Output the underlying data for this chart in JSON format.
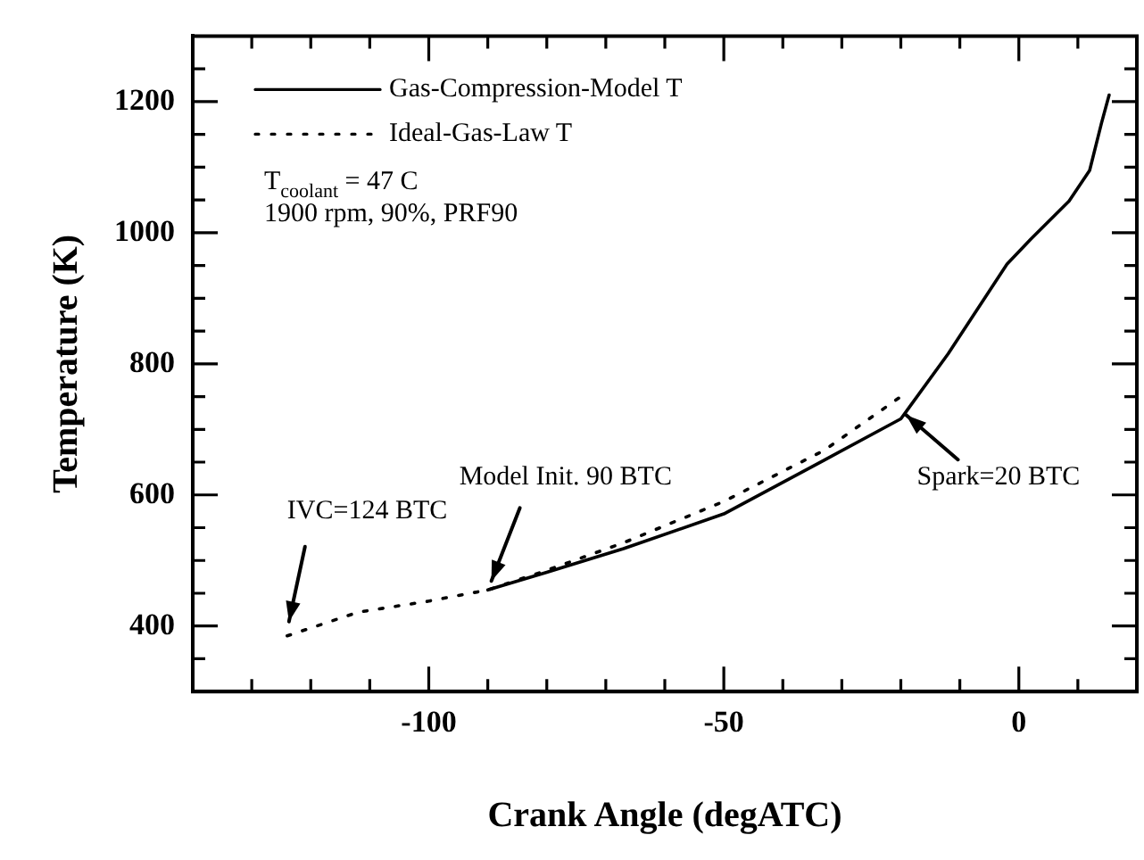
{
  "chart_data": {
    "type": "line",
    "xlabel": "Crank Angle (degATC)",
    "ylabel": "Temperature (K)",
    "xlim": [
      -140,
      20
    ],
    "ylim": [
      300,
      1300
    ],
    "xticks": [
      {
        "value": -130,
        "label": null
      },
      {
        "value": -120,
        "label": null
      },
      {
        "value": -110,
        "label": null
      },
      -100,
      {
        "value": -90,
        "label": null
      },
      {
        "value": -80,
        "label": null
      },
      {
        "value": -70,
        "label": null
      },
      {
        "value": -60,
        "label": null
      },
      -50,
      {
        "value": -40,
        "label": null
      },
      {
        "value": -30,
        "label": null
      },
      {
        "value": -20,
        "label": null
      },
      {
        "value": -10,
        "label": null
      },
      0,
      {
        "value": 10,
        "label": null
      }
    ],
    "yticks": [
      {
        "value": 350,
        "label": null
      },
      400,
      {
        "value": 450,
        "label": null
      },
      {
        "value": 500,
        "label": null
      },
      {
        "value": 550,
        "label": null
      },
      600,
      {
        "value": 650,
        "label": null
      },
      {
        "value": 700,
        "label": null
      },
      {
        "value": 750,
        "label": null
      },
      800,
      {
        "value": 850,
        "label": null
      },
      {
        "value": 900,
        "label": null
      },
      {
        "value": 950,
        "label": null
      },
      1000,
      {
        "value": 1050,
        "label": null
      },
      {
        "value": 1100,
        "label": null
      },
      {
        "value": 1150,
        "label": null
      },
      1200,
      {
        "value": 1250,
        "label": null
      }
    ],
    "grid": false,
    "legend": "top left",
    "marker": "none",
    "series": [
      {
        "name": "Gas-Compression-Model T",
        "color": "#000000",
        "line_style": "solid",
        "x": [
          -90,
          -80,
          -67,
          -50,
          -33,
          -20,
          -12,
          -2,
          2,
          8.5,
          12,
          14,
          15.3
        ],
        "values": [
          455,
          482,
          518,
          571,
          653,
          716,
          815,
          952,
          990,
          1048,
          1095,
          1167,
          1210
        ]
      },
      {
        "name": "Ideal-Gas-Law T",
        "color": "#000000",
        "line_style": "dotted",
        "x": [
          -124,
          -112,
          -100,
          -90,
          -80,
          -67,
          -50,
          -33,
          -20
        ],
        "values": [
          385,
          421,
          438,
          455,
          485,
          527,
          590,
          668,
          750
        ]
      }
    ],
    "annotations": [
      "T$_{coolant}$ = 47 C",
      "1900 rpm, 90%, PRF90",
      {
        "text": "IVC=124 BTC",
        "x": -124,
        "y": 385
      },
      {
        "text": "Model Init. 90 BTC",
        "x": -90,
        "y": 455
      },
      {
        "text": "Spark=20 BTC",
        "x": -20,
        "y": 730
      }
    ]
  }
}
